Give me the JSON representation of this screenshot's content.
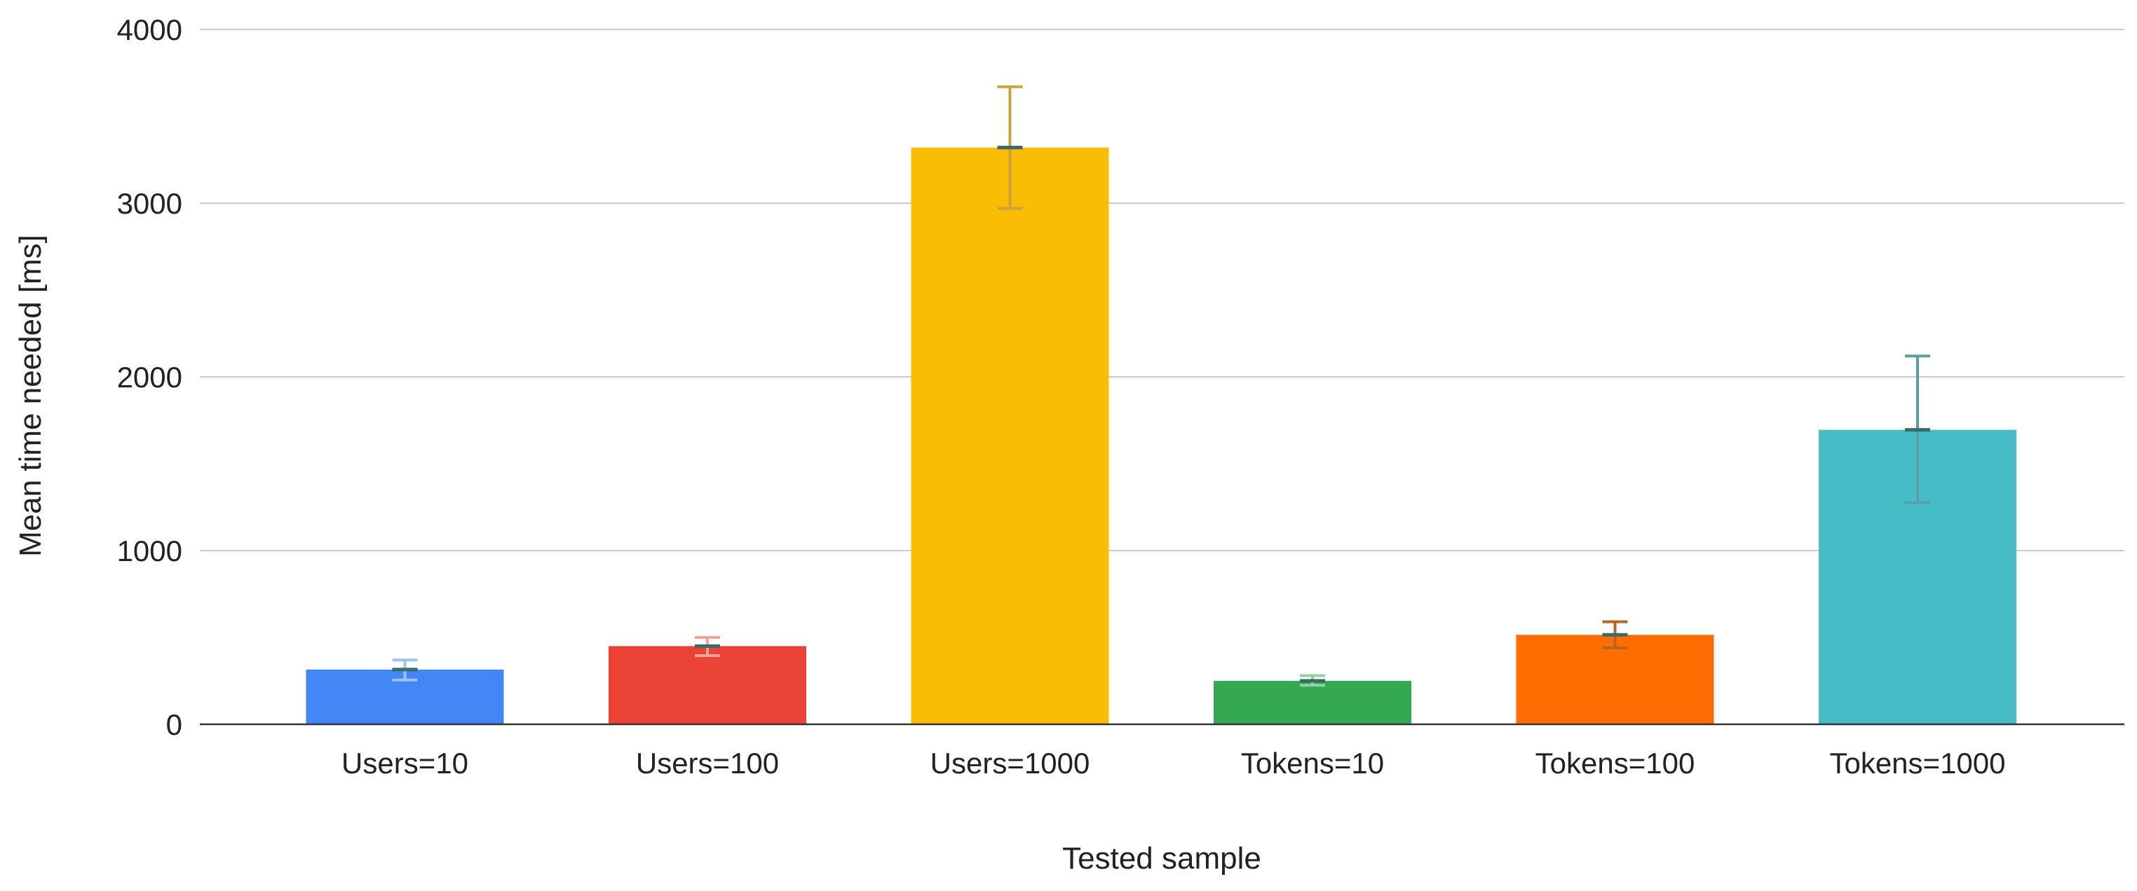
{
  "chart_data": {
    "type": "bar",
    "title": "",
    "xlabel": "Tested sample",
    "ylabel": "Mean time needed [ms]",
    "ylim": [
      0,
      4000
    ],
    "yticks": [
      0,
      1000,
      2000,
      3000,
      4000
    ],
    "grid": true,
    "legend": "none",
    "categories": [
      "Users=10",
      "Users=100",
      "Users=1000",
      "Tokens=10",
      "Tokens=100",
      "Tokens=1000"
    ],
    "values": [
      315,
      450,
      3320,
      250,
      515,
      1695
    ],
    "error_low": [
      255,
      395,
      2970,
      225,
      440,
      1275
    ],
    "error_high": [
      370,
      500,
      3670,
      280,
      590,
      2120
    ],
    "colors": [
      "#4285f4",
      "#ea4335",
      "#fbbc04",
      "#34a853",
      "#ff6d01",
      "#46bdc6"
    ],
    "error_colors": [
      "#9ec2fa",
      "#f4a39a",
      "#c9a53c",
      "#8fd1a3",
      "#b5651f",
      "#5b9ea3"
    ]
  }
}
